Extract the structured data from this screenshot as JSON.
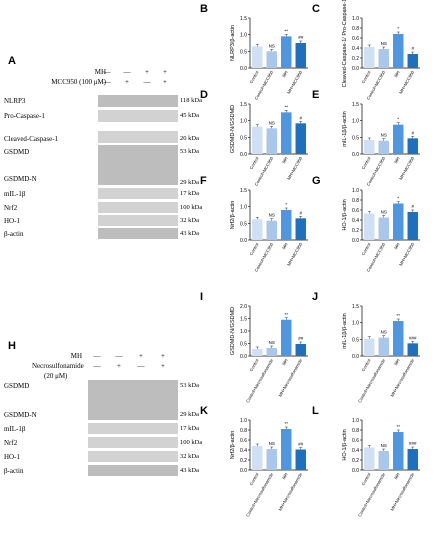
{
  "panel_letters": {
    "A": "A",
    "B": "B",
    "C": "C",
    "D": "D",
    "E": "E",
    "F": "F",
    "G": "G",
    "H": "H",
    "I": "I",
    "J": "J",
    "K": "K",
    "L": "L"
  },
  "blot_A": {
    "conditions": [
      {
        "label": "MH",
        "signs": [
          "—",
          "—",
          "+",
          "+"
        ]
      },
      {
        "label": "MCC950 (100 μM)",
        "signs": [
          "—",
          "+",
          "—",
          "+"
        ]
      }
    ],
    "rows": [
      {
        "label": "NLRP3",
        "kda": "118 kDa"
      },
      {
        "label": "Pro-Caspase-1",
        "kda": "45 kDa"
      },
      {
        "label": "Cleaved-Caspase-1",
        "kda": "20 kDa"
      },
      {
        "label": "GSDMD",
        "kda": "53 kDa"
      },
      {
        "label": "GSDMD-N",
        "kda": "29 kDa"
      },
      {
        "label": "mIL-1β",
        "kda": "17 kDa"
      },
      {
        "label": "Nrf2",
        "kda": "100 kDa"
      },
      {
        "label": "HO-1",
        "kda": "32 kDa"
      },
      {
        "label": "β-actin",
        "kda": "43 kDa"
      }
    ]
  },
  "blot_H": {
    "conditions": [
      {
        "label": "MH",
        "signs": [
          "—",
          "—",
          "+",
          "+"
        ]
      },
      {
        "label": "Necrosulfonamide",
        "signs": [
          "—",
          "+",
          "—",
          "+"
        ]
      },
      {
        "label": "(20 μM)",
        "signs": []
      }
    ],
    "rows": [
      {
        "label": "GSDMD",
        "kda": "53 kDa"
      },
      {
        "label": "GSDMD-N",
        "kda": "29 kDa"
      },
      {
        "label": "mIL-1β",
        "kda": "17 kDa"
      },
      {
        "label": "Nrf2",
        "kda": "100 kDa"
      },
      {
        "label": "HO-1",
        "kda": "32 kDa"
      },
      {
        "label": "β-actin",
        "kda": "43 kDa"
      }
    ]
  },
  "colors": {
    "control": "#cfe0f5",
    "treated_control": "#a9c7ec",
    "mh": "#4f96e0",
    "mh_treated": "#1f6fbf"
  },
  "chart_data": [
    {
      "id": "B",
      "type": "bar",
      "ylabel": "NLRP3/β-actin",
      "ylim": [
        0,
        1.5
      ],
      "ticks": [
        "0.0",
        "0.5",
        "1.0",
        "1.5"
      ],
      "categories": [
        "Control",
        "Control+MCC950",
        "MH",
        "MH+MCC950"
      ],
      "values": [
        0.65,
        0.5,
        0.95,
        0.75
      ],
      "annotations": [
        "",
        "NS",
        "**",
        "##"
      ]
    },
    {
      "id": "C",
      "type": "bar",
      "ylabel": "Cleaved-Caspase-1/ Pro-Caspase-1",
      "ylim": [
        0,
        1.0
      ],
      "ticks": [
        "0.0",
        "0.2",
        "0.4",
        "0.6",
        "0.8",
        "1.0"
      ],
      "categories": [
        "Control",
        "Control+MCC950",
        "MH",
        "MH+MCC950"
      ],
      "values": [
        0.42,
        0.38,
        0.68,
        0.28
      ],
      "annotations": [
        "",
        "NS",
        "*",
        "#"
      ]
    },
    {
      "id": "D",
      "type": "bar",
      "ylabel": "GSDMD-N/GSDMD",
      "ylim": [
        0,
        1.5
      ],
      "ticks": [
        "0.0",
        "0.5",
        "1.0",
        "1.5"
      ],
      "categories": [
        "Control",
        "Control+MCC950",
        "MH",
        "MH+MCC950"
      ],
      "values": [
        0.82,
        0.77,
        1.25,
        0.92
      ],
      "annotations": [
        "",
        "NS",
        "**",
        "#"
      ]
    },
    {
      "id": "E",
      "type": "bar",
      "ylabel": "mIL-1β/β-actin",
      "ylim": [
        0,
        1.5
      ],
      "ticks": [
        "0.0",
        "0.5",
        "1.0",
        "1.5"
      ],
      "categories": [
        "Control",
        "Control+MCC950",
        "MH",
        "MH+MCC950"
      ],
      "values": [
        0.42,
        0.4,
        0.88,
        0.47
      ],
      "annotations": [
        "",
        "NS",
        "*",
        "#"
      ]
    },
    {
      "id": "F",
      "type": "bar",
      "ylabel": "Nrf2/β-actin",
      "ylim": [
        0,
        1.5
      ],
      "ticks": [
        "0.0",
        "0.5",
        "1.0",
        "1.5"
      ],
      "categories": [
        "Control",
        "Control+MCC950",
        "MH",
        "MH+MCC950"
      ],
      "values": [
        0.62,
        0.58,
        0.9,
        0.65
      ],
      "annotations": [
        "",
        "NS",
        "*",
        "#"
      ]
    },
    {
      "id": "G",
      "type": "bar",
      "ylabel": "HO-1/β-actin",
      "ylim": [
        0,
        1.0
      ],
      "ticks": [
        "0.0",
        "0.2",
        "0.4",
        "0.6",
        "0.8",
        "1.0"
      ],
      "categories": [
        "Control",
        "Control+MCC950",
        "MH",
        "MH+MCC950"
      ],
      "values": [
        0.53,
        0.45,
        0.73,
        0.56
      ],
      "annotations": [
        "",
        "NS",
        "*",
        "#"
      ]
    },
    {
      "id": "I",
      "type": "bar",
      "ylabel": "GSDMD-N/GSDMD",
      "ylim": [
        0,
        2.0
      ],
      "ticks": [
        "0.0",
        "0.5",
        "1.0",
        "1.5",
        "2.0"
      ],
      "categories": [
        "Control",
        "Control+Necrosulfonamide",
        "MH",
        "MH+Necrosulfonamide"
      ],
      "values": [
        0.28,
        0.32,
        1.45,
        0.48
      ],
      "annotations": [
        "",
        "NS",
        "**",
        "##"
      ]
    },
    {
      "id": "J",
      "type": "bar",
      "ylabel": "mIL-1β/β-actin",
      "ylim": [
        0,
        1.5
      ],
      "ticks": [
        "0.0",
        "0.5",
        "1.0",
        "1.5"
      ],
      "categories": [
        "Control",
        "Control+Necrosulfonamide",
        "MH",
        "MH+Necrosulfonamide"
      ],
      "values": [
        0.52,
        0.55,
        1.05,
        0.38
      ],
      "annotations": [
        "",
        "NS",
        "**",
        "###"
      ]
    },
    {
      "id": "K",
      "type": "bar",
      "ylabel": "Nrf2/β-actin",
      "ylim": [
        0,
        1.0
      ],
      "ticks": [
        "0.0",
        "0.2",
        "0.4",
        "0.6",
        "0.8",
        "1.0"
      ],
      "categories": [
        "Control",
        "Control+Necrosulfonamide",
        "MH",
        "MH+Necrosulfonamide"
      ],
      "values": [
        0.48,
        0.42,
        0.82,
        0.41
      ],
      "annotations": [
        "",
        "NS",
        "**",
        "##"
      ]
    },
    {
      "id": "L",
      "type": "bar",
      "ylabel": "HO-1/β-actin",
      "ylim": [
        0,
        1.0
      ],
      "ticks": [
        "0.0",
        "0.2",
        "0.4",
        "0.6",
        "0.8",
        "1.0"
      ],
      "categories": [
        "Control",
        "Control+Necrosulfonamide",
        "MH",
        "MH+Necrosulfonamide"
      ],
      "values": [
        0.45,
        0.38,
        0.76,
        0.42
      ],
      "annotations": [
        "",
        "NS",
        "**",
        "###"
      ]
    }
  ]
}
